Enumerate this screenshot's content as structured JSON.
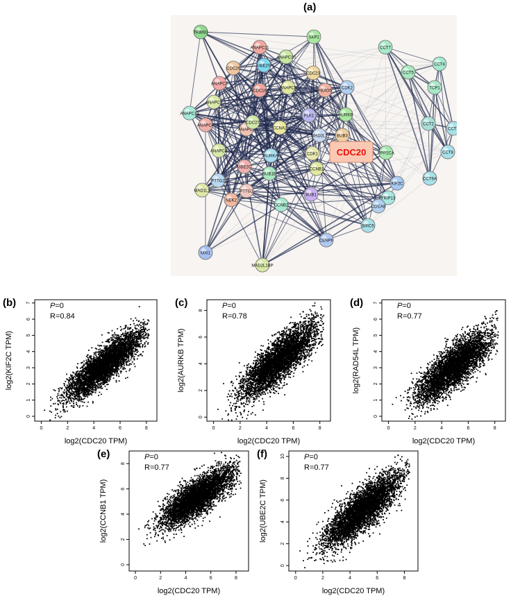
{
  "figure": {
    "panel_a_label": "(a)",
    "network": {
      "highlight_node": "CDC20",
      "highlight_color": "#e8100c",
      "edge_color": "#1f2a4f",
      "nodes": [
        {
          "id": "TRIM33",
          "c": "#8fd88f"
        },
        {
          "id": "ANAPC11",
          "c": "#f0a8a0"
        },
        {
          "id": "SKP2",
          "c": "#a8e8a0"
        },
        {
          "id": "CCT7",
          "c": "#a8e8c8"
        },
        {
          "id": "CDC26",
          "c": "#f0c8a0"
        },
        {
          "id": "UBE2S",
          "c": "#80d8f0"
        },
        {
          "id": "ANAPC10",
          "c": "#c8e8a0"
        },
        {
          "id": "CCT4",
          "c": "#a8e8d0"
        },
        {
          "id": "CCT5",
          "c": "#a8e8c0"
        },
        {
          "id": "ANAPC2",
          "c": "#f0a8a8"
        },
        {
          "id": "CDC23",
          "c": "#f0d8a0"
        },
        {
          "id": "FBXO5",
          "c": "#f0b0a0"
        },
        {
          "id": "CDK2",
          "c": "#b0d0f0"
        },
        {
          "id": "TCP1",
          "c": "#a8e8c8"
        },
        {
          "id": "CDC16",
          "c": "#f0a8a0"
        },
        {
          "id": "ANAPC5",
          "c": "#e0e8a0"
        },
        {
          "id": "ANAPC7",
          "c": "#d8e8a8"
        },
        {
          "id": "ANAPC13",
          "c": "#a8e8d8"
        },
        {
          "id": "PLK1",
          "c": "#b8b8f0"
        },
        {
          "id": "AURKB",
          "c": "#a8e8a0"
        },
        {
          "id": "CCT2",
          "c": "#a8e0d8"
        },
        {
          "id": "CCT3",
          "c": "#a8e0e8"
        },
        {
          "id": "ANAPC1",
          "c": "#f0c0b0"
        },
        {
          "id": "CDC27",
          "c": "#d0e8a8"
        },
        {
          "id": "ANAPC4",
          "c": "#f0b0a8"
        },
        {
          "id": "CCNA2",
          "c": "#e8e8a0"
        },
        {
          "id": "MAD2L1",
          "c": "#c8d8f0"
        },
        {
          "id": "BUB3",
          "c": "#f0d0a0"
        },
        {
          "id": "CCT8",
          "c": "#a8e0e8"
        },
        {
          "id": "ANAPC4b",
          "c": "#d8e8a8"
        },
        {
          "id": "AURKA",
          "c": "#a8e0f0"
        },
        {
          "id": "CDK1",
          "c": "#e8e8b0"
        },
        {
          "id": "PPP2CA",
          "c": "#a8e8b0"
        },
        {
          "id": "UBE2C",
          "c": "#f0b0b0"
        },
        {
          "id": "BUB1B",
          "c": "#a8e8c0"
        },
        {
          "id": "CCNB1",
          "c": "#e0e8a0"
        },
        {
          "id": "CCT6A",
          "c": "#a8e0e8"
        },
        {
          "id": "PTTG2",
          "c": "#b8d8f0"
        },
        {
          "id": "KIF2C",
          "c": "#a8c8f0"
        },
        {
          "id": "MAD1L1",
          "c": "#e0e8a8"
        },
        {
          "id": "PTTG1",
          "c": "#f0c8c0"
        },
        {
          "id": "NEK2",
          "c": "#f0b8a0"
        },
        {
          "id": "BUB1",
          "c": "#c8b0f0"
        },
        {
          "id": "TRIP13",
          "c": "#a8e8e0"
        },
        {
          "id": "CCNB2",
          "c": "#a8e8d0"
        },
        {
          "id": "CDCA8",
          "c": "#b0d0f0"
        },
        {
          "id": "BIRC5",
          "c": "#a8e0e8"
        },
        {
          "id": "CENPF",
          "c": "#b0c8f0"
        },
        {
          "id": "MXI1",
          "c": "#a8c0f0"
        },
        {
          "id": "MAD2L1BP",
          "c": "#d8e8a8"
        }
      ],
      "node_labels": [
        "TRIM33",
        "ANAPC11",
        "SKP2",
        "CCT7",
        "CDC26",
        "UBE2S",
        "ANAPC10",
        "CCT4",
        "CCT5",
        "ANAPC2",
        "CDC23",
        "FBXO5",
        "CDK2",
        "TCP1",
        "CDC16",
        "ANAPC5",
        "ANAPC7",
        "ANAPC13",
        "PLK1",
        "AURKB",
        "CCT2",
        "CCT3",
        "ANAPC1",
        "CDC27",
        "ANAPC4",
        "CCNA2",
        "MAD2L1",
        "BUB3",
        "CCT8",
        "ANAPC4",
        "AURKA",
        "CDK1",
        "PPP2CA",
        "UBE2C",
        "BUB1B",
        "CCNB1",
        "CCT6A",
        "PTTG2",
        "KIF2C",
        "MAD1L1",
        "PTTG1",
        "NEK2",
        "BUB1",
        "TRIP13",
        "CCNB2",
        "CDCA8",
        "BIRC5",
        "CENPF",
        "MXI1",
        "MAD2L1BP"
      ]
    }
  },
  "chart_data": [
    {
      "panel": "(b)",
      "type": "scatter",
      "xlabel": "log2(CDC20 TPM)",
      "ylabel": "log2(KIF2C TPM)",
      "p_label": "P",
      "p_value": "=0",
      "r_text": "R=0.84",
      "xlim": [
        -0.5,
        8.8
      ],
      "ylim": [
        -0.3,
        7.2
      ],
      "xticks": [
        0,
        2,
        4,
        6,
        8
      ],
      "yticks": [
        0,
        1,
        2,
        3,
        4,
        5,
        6,
        7
      ],
      "trend": {
        "slope": 0.64,
        "intercept": 0.1,
        "spread": 0.55,
        "xmin": 0.2,
        "xmax": 8.2,
        "n": 4500,
        "seed": 11
      }
    },
    {
      "panel": "(c)",
      "type": "scatter",
      "xlabel": "log2(CDC20 TPM)",
      "ylabel": "log2(AURKB TPM)",
      "p_label": "P",
      "p_value": "=0",
      "r_text": "R=0.78",
      "xlim": [
        -0.5,
        8.8
      ],
      "ylim": [
        -0.3,
        8.8
      ],
      "xticks": [
        0,
        2,
        4,
        6,
        8
      ],
      "yticks": [
        0,
        2,
        4,
        6,
        8
      ],
      "trend": {
        "slope": 0.82,
        "intercept": 0.2,
        "spread": 0.8,
        "xmin": 0.3,
        "xmax": 8.3,
        "n": 4500,
        "seed": 23
      }
    },
    {
      "panel": "(d)",
      "type": "scatter",
      "xlabel": "log2(CDC20 TPM)",
      "ylabel": "log2(RAD54L TPM)",
      "p_label": "P",
      "p_value": "=0",
      "r_text": "R=0.77",
      "xlim": [
        -0.5,
        8.8
      ],
      "ylim": [
        -0.3,
        7.2
      ],
      "xticks": [
        0,
        2,
        4,
        6,
        8
      ],
      "yticks": [
        0,
        1,
        2,
        3,
        4,
        5,
        6,
        7
      ],
      "trend": {
        "slope": 0.62,
        "intercept": 0.0,
        "spread": 0.65,
        "xmin": 0.3,
        "xmax": 8.3,
        "n": 4500,
        "seed": 37
      }
    },
    {
      "panel": "(e)",
      "type": "scatter",
      "xlabel": "log2(CDC20 TPM)",
      "ylabel": "log2(CCNB1 TPM)",
      "p_label": "P",
      "p_value": "=0",
      "r_text": "R=0.77",
      "xlim": [
        -0.5,
        9.0
      ],
      "ylim": [
        -0.5,
        9.0
      ],
      "xticks": [
        0,
        2,
        4,
        6,
        8
      ],
      "yticks": [
        0,
        2,
        4,
        6,
        8
      ],
      "trend": {
        "slope": 0.62,
        "intercept": 2.3,
        "spread": 0.7,
        "xmin": 0.2,
        "xmax": 8.4,
        "n": 4500,
        "seed": 41
      }
    },
    {
      "panel": "(f)",
      "type": "scatter",
      "xlabel": "log2(CDC20 TPM)",
      "ylabel": "log2(UBE2C TPM)",
      "p_label": "P",
      "p_value": "=0",
      "r_text": "R=0.77",
      "xlim": [
        -0.5,
        9.0
      ],
      "ylim": [
        -0.5,
        10.5
      ],
      "xticks": [
        0,
        2,
        4,
        6,
        8
      ],
      "yticks": [
        0,
        2,
        4,
        6,
        8,
        10
      ],
      "trend": {
        "slope": 1.0,
        "intercept": 0.2,
        "spread": 0.95,
        "xmin": 0.3,
        "xmax": 8.4,
        "n": 4500,
        "seed": 53
      }
    }
  ]
}
